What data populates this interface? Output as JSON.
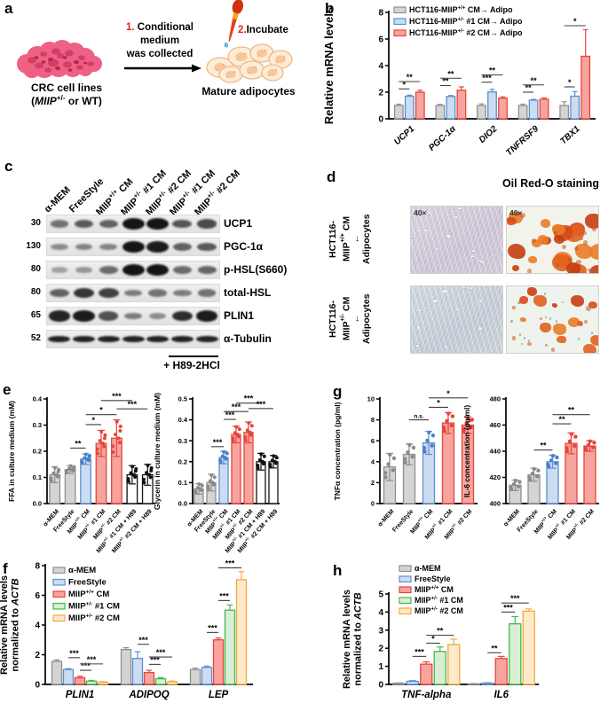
{
  "panel_labels": {
    "a": "a",
    "b": "b",
    "c": "c",
    "d": "d",
    "e": "e",
    "f": "f",
    "g": "g",
    "h": "h"
  },
  "colors": {
    "gray": {
      "fill": "#d4d4d4",
      "stroke": "#8f8f8f",
      "dot": "#8a8a8a"
    },
    "blue": {
      "fill": "#ccddf1",
      "stroke": "#5b8fd0",
      "dot": "#4a80c8"
    },
    "red": {
      "fill": "#f7a49e",
      "stroke": "#e8443a",
      "dot": "#e8443a"
    },
    "green": {
      "fill": "#d9efd4",
      "stroke": "#44b84f",
      "dot": "#44b84f"
    },
    "orange": {
      "fill": "#fdeac8",
      "stroke": "#f6a83d",
      "dot": "#f6a83d"
    },
    "white": {
      "fill": "#ffffff",
      "stroke": "#111111",
      "dot": "#111111"
    },
    "accent_red_text": "#e8251d"
  },
  "schematic": {
    "step1_num": "1.",
    "step1_lines": [
      "Conditional",
      "medium",
      "was collected"
    ],
    "step2_num": "2.",
    "step2_text": "Incubate",
    "left_caption1": "CRC cell lines",
    "left_caption2": "(*MIIP*^+/-^ or WT)",
    "right_caption": "Mature adipocytes"
  },
  "charts": {
    "b": {
      "type": "bar",
      "ylabel": "Relative mRNA levels",
      "ylim": [
        0,
        8
      ],
      "yticks": [
        0,
        2,
        4,
        6,
        8
      ],
      "ydec": 0,
      "cats": [
        "UCP1",
        "PGC-1α",
        "DIO2",
        "TNFRSF9",
        "TBX1"
      ],
      "cats_italic": true,
      "legend": true,
      "series": [
        {
          "name": "HCT116-MIIP^+/+^ CM→ Adipo",
          "color": "gray",
          "values": [
            1,
            1,
            1,
            1,
            1
          ],
          "errors": [
            0.1,
            0.08,
            0.12,
            0.1,
            0.28
          ]
        },
        {
          "name": "HCT116-MIIP^+/-^ #1 CM→ Adipo",
          "color": "blue",
          "values": [
            1.7,
            1.68,
            2.02,
            1.4,
            1.7
          ],
          "errors": [
            0.08,
            0.07,
            0.2,
            0.06,
            0.35
          ]
        },
        {
          "name": "HCT116-MIIP^+/-^ #2 CM→ Adipo",
          "color": "red",
          "values": [
            2.0,
            2.15,
            1.55,
            1.47,
            4.7
          ],
          "errors": [
            0.15,
            0.25,
            0.1,
            0.1,
            2.0
          ]
        }
      ],
      "sig": [
        [
          0,
          1,
          2.25,
          "*"
        ],
        [
          0,
          2,
          2.8,
          "**"
        ],
        [
          3,
          4,
          2.5,
          "**"
        ],
        [
          3,
          5,
          3.05,
          "**"
        ],
        [
          6,
          7,
          2.75,
          "***"
        ],
        [
          6,
          8,
          3.3,
          "**"
        ],
        [
          9,
          10,
          2.0,
          "**"
        ],
        [
          9,
          11,
          2.55,
          "**"
        ],
        [
          12,
          13,
          2.4,
          "*"
        ],
        [
          12,
          14,
          7.0,
          "*"
        ]
      ]
    },
    "e1": {
      "type": "bar_dots",
      "ylabel": "FFA in culture medium (mM)",
      "ylim": [
        0,
        0.4
      ],
      "yticks": [
        0,
        0.1,
        0.2,
        0.3,
        0.4
      ],
      "ydec": 1,
      "bars": [
        {
          "label": "α-MEM",
          "color": "gray",
          "value": 0.11,
          "error": 0.03
        },
        {
          "label": "FreeStyle",
          "color": "gray",
          "value": 0.13,
          "error": 0.015
        },
        {
          "label": "MIIP^+/+^ CM",
          "color": "blue",
          "value": 0.17,
          "error": 0.02
        },
        {
          "label": "MIIP^+/-^ #1 CM",
          "color": "red",
          "value": 0.23,
          "error": 0.05
        },
        {
          "label": "MIIP^+/-^ #2 CM",
          "color": "red",
          "value": 0.25,
          "error": 0.07
        },
        {
          "label": "MIIP^+/-^ #1 CM + H89",
          "color": "white",
          "value": 0.11,
          "error": 0.035
        },
        {
          "label": "MIIP^+/-^ #2 CM + H89",
          "color": "white",
          "value": 0.11,
          "error": 0.04
        }
      ],
      "sig": [
        [
          1,
          2,
          0.212,
          "**"
        ],
        [
          2,
          3,
          0.302,
          "*"
        ],
        [
          2,
          4,
          0.34,
          "*"
        ],
        [
          3,
          5,
          0.394,
          "***"
        ],
        [
          4,
          6,
          0.362,
          "***"
        ]
      ]
    },
    "e2": {
      "type": "bar_dots",
      "ylabel": "Glycerin in culture medium (mM)",
      "ylim": [
        0,
        0.5
      ],
      "yticks": [
        0,
        0.1,
        0.2,
        0.3,
        0.4,
        0.5
      ],
      "ydec": 1,
      "bars": [
        {
          "label": "α-MEM",
          "color": "gray",
          "value": 0.07,
          "error": 0.025
        },
        {
          "label": "FreeStyle",
          "color": "gray",
          "value": 0.1,
          "error": 0.04
        },
        {
          "label": "MIIP^+/+^ CM",
          "color": "blue",
          "value": 0.22,
          "error": 0.03
        },
        {
          "label": "MIIP^+/-^ #1 CM",
          "color": "red",
          "value": 0.33,
          "error": 0.04
        },
        {
          "label": "MIIP^+/-^ #2 CM",
          "color": "red",
          "value": 0.34,
          "error": 0.05
        },
        {
          "label": "MIIP^+/-^ #1 CM + H89",
          "color": "white",
          "value": 0.2,
          "error": 0.04
        },
        {
          "label": "MIIP^+/-^ #2 CM + H89",
          "color": "white",
          "value": 0.2,
          "error": 0.03
        }
      ],
      "sig": [
        [
          1,
          2,
          0.272,
          "***"
        ],
        [
          2,
          3,
          0.402,
          "***"
        ],
        [
          2,
          4,
          0.44,
          "***"
        ],
        [
          3,
          5,
          0.48,
          "***"
        ],
        [
          4,
          6,
          0.454,
          "***"
        ]
      ]
    },
    "g1": {
      "type": "bar_dots",
      "ylabel": "TNFα concentration (pg/ml)",
      "ylim": [
        0,
        10
      ],
      "yticks": [
        0,
        2,
        4,
        6,
        8,
        10
      ],
      "ydec": 0,
      "bars": [
        {
          "label": "α-MEM",
          "color": "gray",
          "value": 3.5,
          "error": 1.3
        },
        {
          "label": "FreeStyle",
          "color": "gray",
          "value": 4.7,
          "error": 1.0
        },
        {
          "label": "MIIP^+/+^ CM",
          "color": "blue",
          "value": 5.8,
          "error": 1.1
        },
        {
          "label": "MIIP^+/-^ #1 CM",
          "color": "red",
          "value": 7.7,
          "error": 1.0
        },
        {
          "label": "MIIP^+/-^ #2 CM",
          "color": "red",
          "value": 7.5,
          "error": 0.8
        }
      ],
      "sig": [
        [
          1,
          2,
          8.0,
          "n.s."
        ],
        [
          2,
          3,
          9.2,
          "*"
        ],
        [
          2,
          4,
          10.1,
          "*"
        ]
      ]
    },
    "g2": {
      "type": "bar_dots",
      "ylabel": "IL-6 concentration (pg/ml)",
      "ylim": [
        400,
        480
      ],
      "yticks": [
        400,
        420,
        440,
        460,
        480
      ],
      "ydec": 0,
      "bars": [
        {
          "label": "α-MEM",
          "color": "gray",
          "value": 414,
          "error": 4
        },
        {
          "label": "FreeStyle",
          "color": "gray",
          "value": 422,
          "error": 5
        },
        {
          "label": "MIIP^+/+^ CM",
          "color": "blue",
          "value": 432,
          "error": 5
        },
        {
          "label": "MIIP^+/-^ #1 CM",
          "color": "red",
          "value": 446,
          "error": 8
        },
        {
          "label": "MIIP^+/-^ #2 CM",
          "color": "red",
          "value": 444,
          "error": 4
        }
      ],
      "sig": [
        [
          1,
          2,
          441,
          "**"
        ],
        [
          2,
          3,
          461,
          "**"
        ],
        [
          2,
          4,
          468,
          "**"
        ]
      ]
    },
    "f": {
      "type": "bar",
      "ylabel": "Relative mRNA levels|normalized to *ACTB*",
      "ylim": [
        0,
        8
      ],
      "yticks": [
        0,
        2,
        4,
        6,
        8
      ],
      "ydec": 0,
      "cats": [
        "PLIN1",
        "ADIPOQ",
        "LEP"
      ],
      "cats_italic": true,
      "legend": true,
      "series": [
        {
          "name": "α-MEM",
          "color": "gray",
          "values": [
            1.55,
            2.35,
            1.0
          ],
          "errors": [
            0.1,
            0.12,
            0.1
          ]
        },
        {
          "name": "FreeStyle",
          "color": "blue",
          "values": [
            1.0,
            1.75,
            1.15
          ],
          "errors": [
            0.06,
            0.45,
            0.08
          ]
        },
        {
          "name": "MIIP^+/+^ CM",
          "color": "red",
          "values": [
            0.45,
            0.8,
            3.0
          ],
          "errors": [
            0.1,
            0.15,
            0.12
          ]
        },
        {
          "name": "MIIP^+/-^ #1 CM",
          "color": "green",
          "values": [
            0.22,
            0.38,
            5.0
          ],
          "errors": [
            0.05,
            0.08,
            0.35
          ]
        },
        {
          "name": "MIIP^+/-^ #2 CM",
          "color": "orange",
          "values": [
            0.15,
            0.18,
            7.05
          ],
          "errors": [
            0.04,
            0.05,
            0.55
          ]
        }
      ],
      "sig": [
        [
          1,
          2,
          1.8,
          "***"
        ],
        [
          2,
          3,
          0.95,
          "***"
        ],
        [
          2,
          4,
          1.38,
          "***"
        ],
        [
          6,
          7,
          2.7,
          "***"
        ],
        [
          7,
          8,
          1.35,
          "***"
        ],
        [
          7,
          9,
          1.85,
          "***"
        ],
        [
          11,
          12,
          3.5,
          "***"
        ],
        [
          12,
          13,
          5.65,
          "***"
        ],
        [
          12,
          14,
          7.85,
          "***"
        ]
      ]
    },
    "h": {
      "type": "bar",
      "ylabel": "Relative mRNA levels|normalized to *ACTB*",
      "ylim": [
        0,
        5
      ],
      "yticks": [
        0,
        1,
        2,
        3,
        4,
        5
      ],
      "ydec": 0,
      "cats": [
        "TNF-alpha",
        "IL6"
      ],
      "cats_italic": true,
      "legend": true,
      "series": [
        {
          "name": "α-MEM",
          "color": "gray",
          "values": [
            0.06,
            0.03
          ],
          "errors": [
            0.02,
            0.01
          ]
        },
        {
          "name": "FreeStyle",
          "color": "blue",
          "values": [
            0.17,
            0.07
          ],
          "errors": [
            0.04,
            0.02
          ]
        },
        {
          "name": "MIIP^+/+^ CM",
          "color": "red",
          "values": [
            1.12,
            1.43
          ],
          "errors": [
            0.12,
            0.12
          ]
        },
        {
          "name": "MIIP^+/-^ #1 CM",
          "color": "green",
          "values": [
            1.82,
            3.35
          ],
          "errors": [
            0.25,
            0.4
          ]
        },
        {
          "name": "MIIP^+/-^ #2 CM",
          "color": "orange",
          "values": [
            2.2,
            4.05
          ],
          "errors": [
            0.3,
            0.12
          ]
        }
      ],
      "sig": [
        [
          1,
          2,
          1.55,
          "***"
        ],
        [
          2,
          3,
          2.28,
          "*"
        ],
        [
          2,
          4,
          2.72,
          "**"
        ],
        [
          6,
          7,
          1.75,
          "**"
        ],
        [
          7,
          8,
          4.0,
          "***"
        ],
        [
          7,
          9,
          4.5,
          "***"
        ]
      ]
    }
  },
  "blot": {
    "lanes": [
      "α-MEM",
      "FreeStyle",
      "MIIP^+/+^ CM",
      "MIIP^+/-^ #1 CM",
      "MIIP^+/-^ #2 CM",
      "MIIP^+/-^ #1 CM",
      "MIIP^+/-^ #2 CM"
    ],
    "rows": [
      {
        "mw": "30",
        "protein": "UCP1",
        "bands": [
          0.45,
          0.6,
          0.55,
          1,
          1,
          0.62,
          0.68
        ]
      },
      {
        "mw": "130",
        "protein": "PGC-1α",
        "bands": [
          0.3,
          0.35,
          0.35,
          1,
          0.95,
          0.55,
          0.6
        ]
      },
      {
        "mw": "80",
        "protein": "p-HSL(S660)",
        "bands": [
          0.18,
          0.25,
          0.5,
          1,
          1,
          0.5,
          0.52
        ]
      },
      {
        "mw": "80",
        "protein": "total-HSL",
        "bands": [
          0.55,
          0.8,
          0.75,
          0.4,
          0.45,
          0.4,
          0.45
        ]
      },
      {
        "mw": "65",
        "protein": "PLIN1",
        "bands": [
          0.9,
          0.95,
          0.65,
          0.4,
          0.3,
          0.85,
          0.95
        ]
      },
      {
        "mw": "52",
        "protein": "α-Tubulin",
        "bands": [
          0.92,
          0.92,
          0.92,
          0.92,
          0.92,
          0.92,
          0.92
        ]
      }
    ],
    "treatment": "+ H89-2HCl"
  },
  "microscopy": {
    "title": "Oil Red-O staining",
    "rows": [
      {
        "line1": "HCT116-",
        "line2": "MIIP^+/+^ CM",
        "arrow": "↓",
        "line3": "Adipocytes",
        "mag": "40×",
        "stain": "high",
        "field": "lavender"
      },
      {
        "line1": "HCT116-",
        "line2": "MIIP^+/-^ CM",
        "arrow": "↓",
        "line3": "Adipocytes",
        "mag": "",
        "stain": "low",
        "field": "blue"
      }
    ]
  }
}
